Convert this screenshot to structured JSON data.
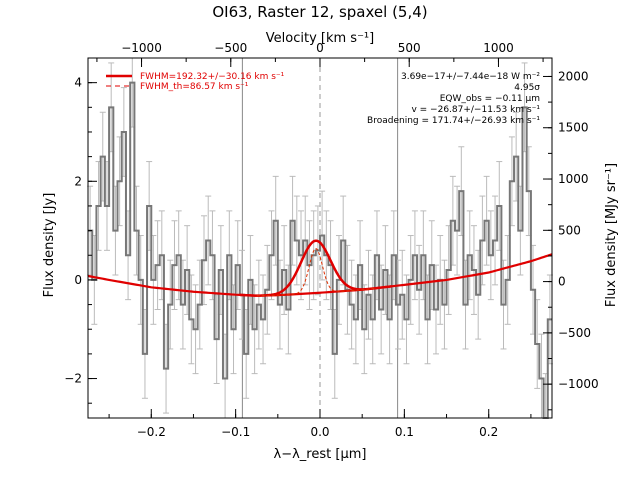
{
  "chart_data": {
    "type": "line",
    "title": "OI63, Raster 12, spaxel (5,4)",
    "xlabel": "λ−λ_rest [μm]",
    "ylabel": "Flux density [Jy]",
    "top_label": "Velocity [km s⁻¹]",
    "right_label": "Flux density [MJy sr⁻¹]",
    "xlim": [
      -0.275,
      0.275
    ],
    "ylim": [
      -2.8,
      4.5
    ],
    "right_ylim": [
      -1330,
      2180
    ],
    "top_lim": [
      -1300,
      1300
    ],
    "x_ticks": [
      -0.2,
      -0.1,
      0.0,
      0.1,
      0.2
    ],
    "x_tick_labels": [
      "−0.2",
      "−0.1",
      "0.0",
      "0.1",
      "0.2"
    ],
    "y_ticks": [
      -2,
      0,
      2,
      4
    ],
    "y_tick_labels": [
      "−2",
      "0",
      "2",
      "4"
    ],
    "top_ticks": [
      -1000,
      -500,
      0,
      500,
      1000
    ],
    "top_tick_labels": [
      "−1000",
      "−500",
      "0",
      "500",
      "1000"
    ],
    "right_ticks": [
      -1000,
      -500,
      0,
      500,
      1000,
      1500,
      2000
    ],
    "right_tick_labels": [
      "−1000",
      "−500",
      "0",
      "500",
      "1000",
      "1500",
      "2000"
    ],
    "vlines_solid": [
      -0.092,
      0.092
    ],
    "vlines_dashed": [
      0.0
    ],
    "legend": {
      "placement": "top-left",
      "entries": [
        {
          "label": "FWHM=192.32+/−30.16 km s⁻¹",
          "style": "solid",
          "color": "#e00000"
        },
        {
          "label": "FWHM_th=86.57 km s⁻¹",
          "style": "dashed",
          "color": "#e00000"
        }
      ]
    },
    "annotations": [
      "3.69e−17+/−7.44e−18 W m⁻²",
      "4.95σ",
      "EQW_obs = −0.11 μm",
      "v = −26.87+/−11.53 km s⁻¹",
      "Broadening = 171.74+/−26.93 km s⁻¹"
    ],
    "series": [
      {
        "style": "histogram",
        "color": "#777777",
        "x": [
          -0.275,
          -0.27,
          -0.265,
          -0.26,
          -0.255,
          -0.25,
          -0.245,
          -0.24,
          -0.235,
          -0.23,
          -0.225,
          -0.22,
          -0.215,
          -0.21,
          -0.205,
          -0.2,
          -0.195,
          -0.19,
          -0.185,
          -0.18,
          -0.175,
          -0.17,
          -0.165,
          -0.16,
          -0.155,
          -0.15,
          -0.145,
          -0.14,
          -0.135,
          -0.13,
          -0.125,
          -0.12,
          -0.115,
          -0.11,
          -0.105,
          -0.1,
          -0.095,
          -0.09,
          -0.085,
          -0.08,
          -0.075,
          -0.07,
          -0.065,
          -0.06,
          -0.055,
          -0.05,
          -0.045,
          -0.04,
          -0.035,
          -0.03,
          -0.025,
          -0.02,
          -0.015,
          -0.01,
          -0.005,
          0.0,
          0.005,
          0.01,
          0.015,
          0.02,
          0.025,
          0.03,
          0.035,
          0.04,
          0.045,
          0.05,
          0.055,
          0.06,
          0.065,
          0.07,
          0.075,
          0.08,
          0.085,
          0.09,
          0.095,
          0.1,
          0.105,
          0.11,
          0.115,
          0.12,
          0.125,
          0.13,
          0.135,
          0.14,
          0.145,
          0.15,
          0.155,
          0.16,
          0.165,
          0.17,
          0.175,
          0.18,
          0.185,
          0.19,
          0.195,
          0.2,
          0.205,
          0.21,
          0.215,
          0.22,
          0.225,
          0.23,
          0.235,
          0.24,
          0.245,
          0.25,
          0.255,
          0.26,
          0.265,
          0.27
        ],
        "y": [
          1.0,
          0.0,
          1.5,
          2.5,
          1.5,
          3.5,
          1.0,
          2.0,
          3.0,
          0.5,
          4.0,
          1.0,
          0.0,
          -1.5,
          1.5,
          0.0,
          0.3,
          0.5,
          -1.8,
          -0.5,
          0.3,
          0.5,
          -0.5,
          0.2,
          -0.8,
          -1.0,
          -0.5,
          0.4,
          0.8,
          0.5,
          -1.2,
          0.2,
          -2.0,
          0.5,
          -1.0,
          0.3,
          -0.3,
          -1.5,
          0.0,
          -1.0,
          -0.5,
          -0.8,
          -0.2,
          0.5,
          1.2,
          -0.5,
          0.2,
          -0.6,
          1.2,
          0.8,
          0.5,
          0.8,
          0.3,
          0.5,
          0.6,
          0.9,
          0.5,
          0.3,
          -1.5,
          0.0,
          0.8,
          -0.2,
          -0.5,
          -0.8,
          0.3,
          -1.0,
          -0.3,
          -0.8,
          0.5,
          -0.6,
          0.2,
          -0.8,
          0.5,
          -0.5,
          -0.3,
          -0.8,
          0.0,
          0.5,
          -0.2,
          0.5,
          -0.8,
          0.3,
          -0.6,
          0.0,
          -0.5,
          0.2,
          1.2,
          1.0,
          1.8,
          -0.5,
          0.5,
          0.2,
          -0.3,
          0.8,
          1.2,
          0.5,
          0.8,
          1.5,
          -0.5,
          0.0,
          2.0,
          2.5,
          1.0,
          3.5,
          1.8,
          -0.2,
          -1.3,
          -2.0,
          -2.8,
          -0.8
        ],
        "err": [
          0.9,
          0.9,
          0.9,
          0.9,
          0.9,
          0.9,
          0.9,
          0.9,
          0.9,
          0.9,
          0.9,
          0.9,
          0.9,
          0.9,
          0.9,
          0.9,
          0.9,
          0.9,
          0.9,
          0.9,
          0.9,
          0.9,
          0.9,
          0.9,
          0.9,
          0.9,
          0.9,
          0.9,
          0.9,
          0.9,
          0.9,
          0.9,
          0.9,
          0.9,
          0.9,
          0.9,
          0.9,
          0.9,
          0.9,
          0.9,
          0.9,
          0.9,
          0.9,
          0.9,
          0.9,
          0.9,
          0.9,
          0.9,
          0.9,
          0.9,
          0.9,
          0.9,
          0.9,
          0.9,
          0.9,
          0.9,
          0.9,
          0.9,
          0.9,
          0.9,
          0.9,
          0.9,
          0.9,
          0.9,
          0.9,
          0.9,
          0.9,
          0.9,
          0.9,
          0.9,
          0.9,
          0.9,
          0.9,
          0.9,
          0.9,
          0.9,
          0.9,
          0.9,
          0.9,
          0.9,
          0.9,
          0.9,
          0.9,
          0.9,
          0.9,
          0.9,
          0.9,
          0.9,
          0.9,
          0.9,
          0.9,
          0.9,
          0.9,
          0.9,
          0.9,
          0.9,
          0.9,
          0.9,
          0.9,
          0.9,
          0.9,
          0.9,
          0.9,
          0.9,
          0.9,
          0.9,
          0.9,
          0.9,
          0.9,
          0.9
        ]
      },
      {
        "style": "baseline",
        "color": "#e00000",
        "x": [
          -0.275,
          -0.25,
          -0.2,
          -0.15,
          -0.1,
          -0.075,
          -0.05,
          0.0,
          0.05,
          0.1,
          0.15,
          0.2,
          0.25,
          0.275
        ],
        "y": [
          0.08,
          0.0,
          -0.15,
          -0.24,
          -0.3,
          -0.32,
          -0.31,
          -0.26,
          -0.2,
          -0.1,
          0.0,
          0.15,
          0.38,
          0.52
        ]
      },
      {
        "style": "fit",
        "color": "#e00000",
        "center": -0.005,
        "amplitude": 1.06,
        "fwhm": 0.041
      },
      {
        "style": "instrumental",
        "color": "#e03000",
        "center": -0.005,
        "amplitude": 0.9,
        "fwhm": 0.0185
      }
    ]
  }
}
